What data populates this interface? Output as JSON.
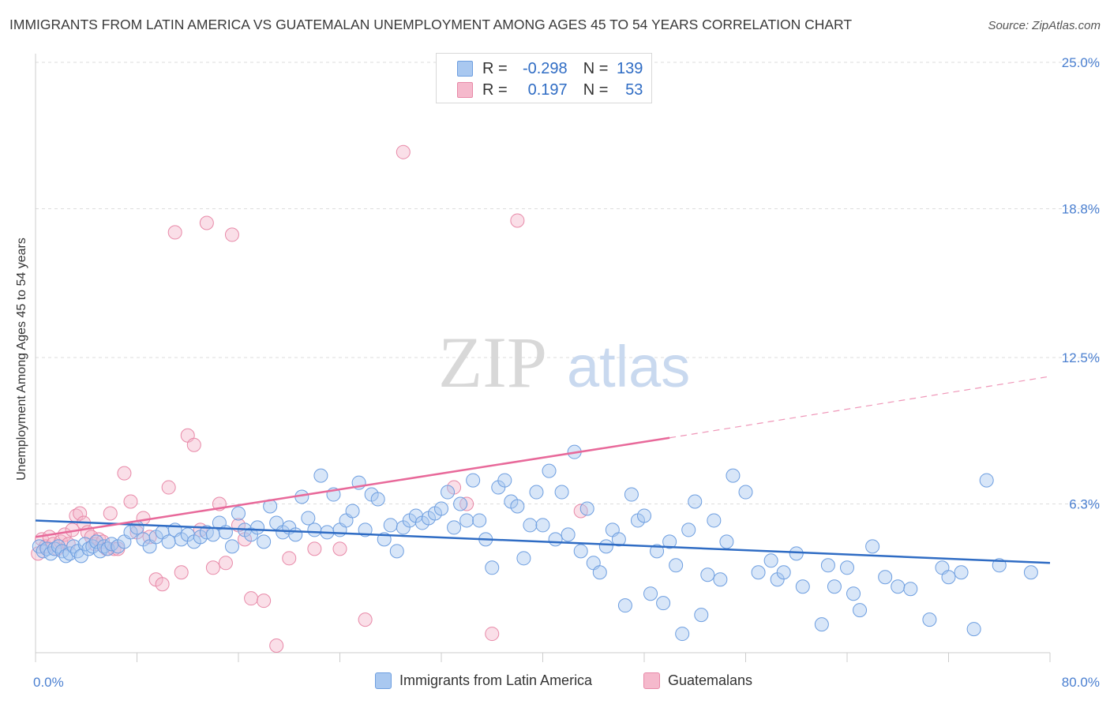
{
  "title": "IMMIGRANTS FROM LATIN AMERICA VS GUATEMALAN UNEMPLOYMENT AMONG AGES 45 TO 54 YEARS CORRELATION CHART",
  "source": "Source: ZipAtlas.com",
  "watermark": {
    "zip": "ZIP",
    "atlas": "atlas"
  },
  "legend": {
    "rows": [
      {
        "r_label": "R =",
        "r_value": "-0.298",
        "n_label": "N =",
        "n_value": "139",
        "color": "#a9c8f0",
        "border": "#6d9ee0"
      },
      {
        "r_label": "R =",
        "r_value": "0.197",
        "n_label": "N =",
        "n_value": "53",
        "color": "#f5b9cc",
        "border": "#e889a8"
      }
    ]
  },
  "bottom_legend": {
    "series1": "Immigrants from Latin America",
    "series2": "Guatemalans"
  },
  "colors": {
    "blue_fill": "#a9c8f0",
    "blue_stroke": "#6d9ee0",
    "blue_line": "#2f6cc4",
    "pink_fill": "#f5b9cc",
    "pink_stroke": "#e889a8",
    "pink_line": "#e8699a",
    "grid": "#dddddd",
    "tick_text": "#4a7fd0"
  },
  "chart_data": {
    "type": "scatter",
    "title": "IMMIGRANTS FROM LATIN AMERICA VS GUATEMALAN UNEMPLOYMENT AMONG AGES 45 TO 54 YEARS CORRELATION CHART",
    "xlabel": "",
    "ylabel": "Unemployment Among Ages 45 to 54 years",
    "xlim": [
      0,
      80
    ],
    "ylim": [
      0,
      25
    ],
    "x_tick_labels": [
      "0.0%",
      "80.0%"
    ],
    "y_ticks": [
      6.3,
      12.5,
      18.8,
      25.0
    ],
    "y_tick_labels": [
      "6.3%",
      "12.5%",
      "18.8%",
      "25.0%"
    ],
    "grid": true,
    "legend_position": "top-center",
    "series": [
      {
        "name": "Immigrants from Latin America",
        "trend": {
          "x": [
            0,
            80
          ],
          "y": [
            5.6,
            3.8
          ],
          "style": "solid"
        },
        "points": [
          [
            0.3,
            4.5
          ],
          [
            0.6,
            4.3
          ],
          [
            0.9,
            4.4
          ],
          [
            1.2,
            4.2
          ],
          [
            1.5,
            4.4
          ],
          [
            1.8,
            4.5
          ],
          [
            2.1,
            4.3
          ],
          [
            2.4,
            4.1
          ],
          [
            2.7,
            4.2
          ],
          [
            3.0,
            4.5
          ],
          [
            3.3,
            4.3
          ],
          [
            3.6,
            4.1
          ],
          [
            3.9,
            4.6
          ],
          [
            4.2,
            4.4
          ],
          [
            4.5,
            4.5
          ],
          [
            4.8,
            4.7
          ],
          [
            5.1,
            4.3
          ],
          [
            5.4,
            4.5
          ],
          [
            5.7,
            4.4
          ],
          [
            6.0,
            4.6
          ],
          [
            6.5,
            4.5
          ],
          [
            7.0,
            4.7
          ],
          [
            7.5,
            5.1
          ],
          [
            8.0,
            5.3
          ],
          [
            8.5,
            4.8
          ],
          [
            9.0,
            4.5
          ],
          [
            9.5,
            4.9
          ],
          [
            10.0,
            5.1
          ],
          [
            10.5,
            4.7
          ],
          [
            11.0,
            5.2
          ],
          [
            11.5,
            4.8
          ],
          [
            12.0,
            5.0
          ],
          [
            12.5,
            4.7
          ],
          [
            13.0,
            4.9
          ],
          [
            13.5,
            5.1
          ],
          [
            14.0,
            5.0
          ],
          [
            14.5,
            5.5
          ],
          [
            15.0,
            5.1
          ],
          [
            15.5,
            4.5
          ],
          [
            16.0,
            5.9
          ],
          [
            16.5,
            5.2
          ],
          [
            17.0,
            5.0
          ],
          [
            17.5,
            5.3
          ],
          [
            18.0,
            4.7
          ],
          [
            18.5,
            6.2
          ],
          [
            19.0,
            5.5
          ],
          [
            19.5,
            5.1
          ],
          [
            20.0,
            5.3
          ],
          [
            20.5,
            5.0
          ],
          [
            21.0,
            6.6
          ],
          [
            21.5,
            5.7
          ],
          [
            22.0,
            5.2
          ],
          [
            22.5,
            7.5
          ],
          [
            23.0,
            5.1
          ],
          [
            23.5,
            6.7
          ],
          [
            24.0,
            5.2
          ],
          [
            24.5,
            5.6
          ],
          [
            25.0,
            6.0
          ],
          [
            25.5,
            7.2
          ],
          [
            26.0,
            5.2
          ],
          [
            26.5,
            6.7
          ],
          [
            27.0,
            6.5
          ],
          [
            27.5,
            4.8
          ],
          [
            28.0,
            5.4
          ],
          [
            28.5,
            4.3
          ],
          [
            29.0,
            5.3
          ],
          [
            29.5,
            5.6
          ],
          [
            30.0,
            5.8
          ],
          [
            30.5,
            5.5
          ],
          [
            31.0,
            5.7
          ],
          [
            31.5,
            5.9
          ],
          [
            32.0,
            6.1
          ],
          [
            32.5,
            6.8
          ],
          [
            33.0,
            5.3
          ],
          [
            33.5,
            6.3
          ],
          [
            34.0,
            5.6
          ],
          [
            34.5,
            7.3
          ],
          [
            35.0,
            5.6
          ],
          [
            35.5,
            4.8
          ],
          [
            36.0,
            3.6
          ],
          [
            36.5,
            7.0
          ],
          [
            37.0,
            7.3
          ],
          [
            37.5,
            6.4
          ],
          [
            38.0,
            6.2
          ],
          [
            38.5,
            4.0
          ],
          [
            39.0,
            5.4
          ],
          [
            39.5,
            6.8
          ],
          [
            40.0,
            5.4
          ],
          [
            40.5,
            7.7
          ],
          [
            41.0,
            4.8
          ],
          [
            41.5,
            6.8
          ],
          [
            42.0,
            5.0
          ],
          [
            42.5,
            8.5
          ],
          [
            43.0,
            4.3
          ],
          [
            43.5,
            6.1
          ],
          [
            44.0,
            3.8
          ],
          [
            44.5,
            3.4
          ],
          [
            45.0,
            4.5
          ],
          [
            45.5,
            5.2
          ],
          [
            46.0,
            4.8
          ],
          [
            46.5,
            2.0
          ],
          [
            47.0,
            6.7
          ],
          [
            47.5,
            5.6
          ],
          [
            48.0,
            5.8
          ],
          [
            48.5,
            2.5
          ],
          [
            49.0,
            4.3
          ],
          [
            49.5,
            2.1
          ],
          [
            50.0,
            4.7
          ],
          [
            50.5,
            3.7
          ],
          [
            51.0,
            0.8
          ],
          [
            51.5,
            5.2
          ],
          [
            52.0,
            6.4
          ],
          [
            52.5,
            1.6
          ],
          [
            53.0,
            3.3
          ],
          [
            53.5,
            5.6
          ],
          [
            54.0,
            3.1
          ],
          [
            54.5,
            4.7
          ],
          [
            55.0,
            7.5
          ],
          [
            56.0,
            6.8
          ],
          [
            57.0,
            3.4
          ],
          [
            58.0,
            3.9
          ],
          [
            58.5,
            3.1
          ],
          [
            59.0,
            3.4
          ],
          [
            60.0,
            4.2
          ],
          [
            60.5,
            2.8
          ],
          [
            62.0,
            1.2
          ],
          [
            62.5,
            3.7
          ],
          [
            63.0,
            2.8
          ],
          [
            64.0,
            3.6
          ],
          [
            64.5,
            2.5
          ],
          [
            65.0,
            1.8
          ],
          [
            66.0,
            4.5
          ],
          [
            67.0,
            3.2
          ],
          [
            68.0,
            2.8
          ],
          [
            69.0,
            2.7
          ],
          [
            70.5,
            1.4
          ],
          [
            71.5,
            3.6
          ],
          [
            72.0,
            3.2
          ],
          [
            73.0,
            3.4
          ],
          [
            74.0,
            1.0
          ],
          [
            75.0,
            7.3
          ],
          [
            76.0,
            3.7
          ],
          [
            78.5,
            3.4
          ]
        ]
      },
      {
        "name": "Guatemalans",
        "trend": {
          "x": [
            0,
            50
          ],
          "y": [
            4.9,
            9.1
          ],
          "style": "solid",
          "dashed_to": [
            80,
            11.7
          ]
        },
        "points": [
          [
            0.2,
            4.2
          ],
          [
            0.5,
            4.8
          ],
          [
            0.8,
            4.5
          ],
          [
            1.1,
            4.9
          ],
          [
            1.4,
            4.6
          ],
          [
            1.7,
            4.4
          ],
          [
            2.0,
            4.7
          ],
          [
            2.3,
            5.0
          ],
          [
            2.6,
            4.6
          ],
          [
            2.9,
            5.2
          ],
          [
            3.2,
            5.8
          ],
          [
            3.5,
            5.9
          ],
          [
            3.8,
            5.5
          ],
          [
            4.1,
            5.1
          ],
          [
            4.4,
            4.9
          ],
          [
            4.7,
            4.6
          ],
          [
            5.0,
            4.8
          ],
          [
            5.3,
            4.7
          ],
          [
            5.6,
            4.4
          ],
          [
            5.9,
            5.9
          ],
          [
            6.2,
            4.4
          ],
          [
            6.5,
            4.4
          ],
          [
            7.0,
            7.6
          ],
          [
            7.5,
            6.4
          ],
          [
            8.0,
            5.1
          ],
          [
            8.5,
            5.7
          ],
          [
            9.0,
            4.9
          ],
          [
            9.5,
            3.1
          ],
          [
            10.0,
            2.9
          ],
          [
            10.5,
            7.0
          ],
          [
            11.0,
            17.8
          ],
          [
            11.5,
            3.4
          ],
          [
            12.0,
            9.2
          ],
          [
            12.5,
            8.8
          ],
          [
            13.0,
            5.2
          ],
          [
            13.5,
            18.2
          ],
          [
            14.0,
            3.6
          ],
          [
            14.5,
            6.3
          ],
          [
            15.0,
            3.8
          ],
          [
            15.5,
            17.7
          ],
          [
            16.0,
            5.4
          ],
          [
            16.5,
            4.8
          ],
          [
            17.0,
            2.3
          ],
          [
            18.0,
            2.2
          ],
          [
            19.0,
            0.3
          ],
          [
            20.0,
            4.0
          ],
          [
            22.0,
            4.4
          ],
          [
            24.0,
            4.4
          ],
          [
            26.0,
            1.4
          ],
          [
            29.0,
            21.2
          ],
          [
            33.0,
            7.0
          ],
          [
            34.0,
            6.3
          ],
          [
            36.0,
            0.8
          ],
          [
            38.0,
            18.3
          ],
          [
            43.0,
            6.0
          ]
        ]
      }
    ]
  }
}
